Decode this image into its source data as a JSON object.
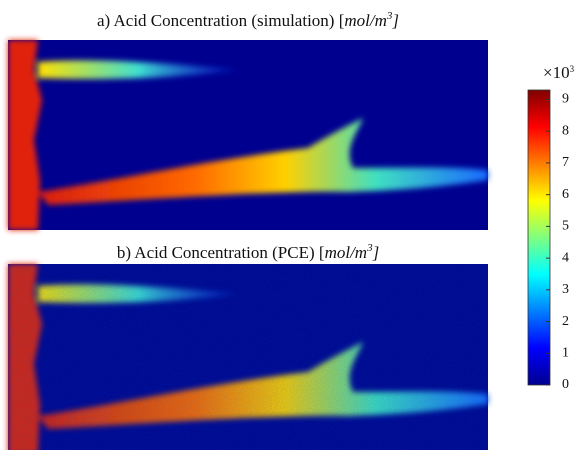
{
  "panels": [
    {
      "prefix": "a) Acid Concentration (simulation) [",
      "unit": "mol/m",
      "power": "3",
      "suffix": "]"
    },
    {
      "prefix": "b) Acid Concentration (PCE) [",
      "unit": "mol/m",
      "power": "3",
      "suffix": "]"
    }
  ],
  "colorbar": {
    "multiplier": "×10",
    "multiplier_power": "3",
    "colormap": "jet",
    "clim": [
      0,
      9.3
    ],
    "ticks": [
      0,
      1,
      2,
      3,
      4,
      5,
      6,
      7,
      8,
      9
    ]
  }
}
